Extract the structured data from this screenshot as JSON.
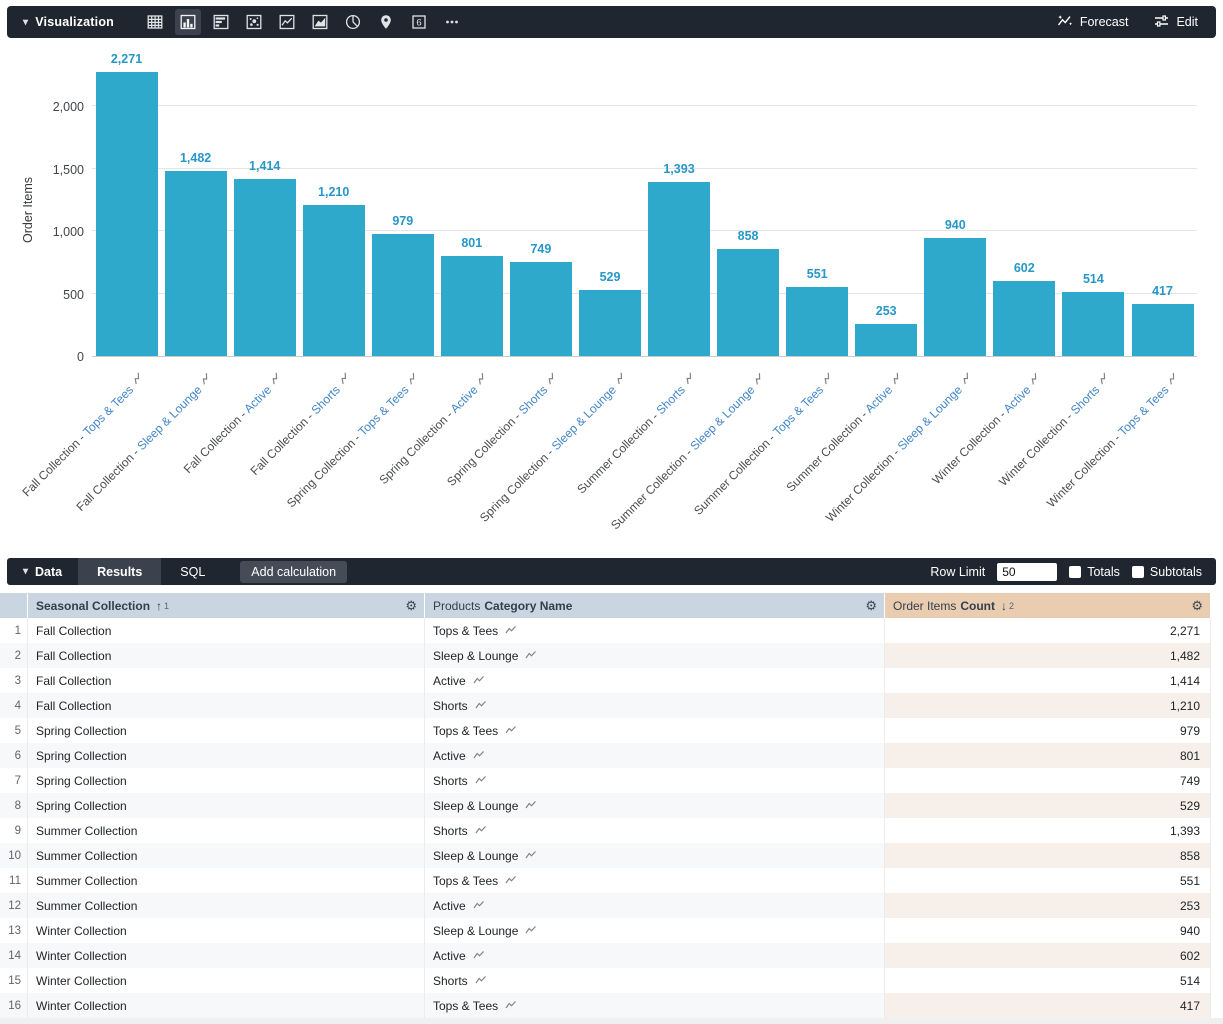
{
  "colors": {
    "toolbar_bg": "#20262F",
    "selected_item_bg": "#3B424E",
    "bar": "#2EA9CB",
    "value_label": "#2697C8",
    "category_link": "#4285C8",
    "dimension_header_bg": "#CAD5E2",
    "measure_header_bg": "#EACDB1",
    "measure_row_alt_bg": "#F7F0EA",
    "dimension_row_alt_bg": "#F7F8F9"
  },
  "viz_toolbar": {
    "title": "Visualization",
    "icons": [
      "table-chart",
      "column-chart",
      "bar-chart",
      "scatter-plot",
      "line-chart",
      "area-chart",
      "pie-chart",
      "map-marker",
      "single-value",
      "more-options"
    ],
    "selected_icon": "column-chart",
    "forecast_label": "Forecast",
    "edit_label": "Edit"
  },
  "chart_data": {
    "type": "bar",
    "title": "",
    "xlabel": "",
    "ylabel": "Order Items",
    "ylim": [
      0,
      2536
    ],
    "y_ticks": [
      0,
      500,
      1000,
      1500,
      2000
    ],
    "grid": true,
    "legend": false,
    "bar_color": "#2EA9CB",
    "categories": [
      "Fall Collection - Tops & Tees",
      "Fall Collection - Sleep & Lounge",
      "Fall Collection - Active",
      "Fall Collection - Shorts",
      "Spring Collection - Tops & Tees",
      "Spring Collection - Active",
      "Spring Collection - Shorts",
      "Spring Collection - Sleep & Lounge",
      "Summer Collection - Shorts",
      "Summer Collection - Sleep & Lounge",
      "Summer Collection - Tops & Tees",
      "Summer Collection - Active",
      "Winter Collection - Sleep & Lounge",
      "Winter Collection - Active",
      "Winter Collection - Shorts",
      "Winter Collection - Tops & Tees"
    ],
    "values": [
      2271,
      1482,
      1414,
      1210,
      979,
      801,
      749,
      529,
      1393,
      858,
      551,
      253,
      940,
      602,
      514,
      417
    ]
  },
  "data_panel": {
    "title": "Data",
    "tabs": [
      {
        "label": "Results"
      },
      {
        "label": "SQL"
      }
    ],
    "active_tab": "Results",
    "add_calculation_label": "Add calculation",
    "row_limit_label": "Row Limit",
    "row_limit_value": "50",
    "totals_label": "Totals",
    "subtotals_label": "Subtotals"
  },
  "table": {
    "columns": [
      {
        "view": "",
        "field": "Seasonal Collection",
        "sort": "asc",
        "sort_order": "1",
        "role": "dimension"
      },
      {
        "view": "Products",
        "field": "Category Name",
        "sort": "",
        "sort_order": "",
        "role": "dimension"
      },
      {
        "view": "Order Items",
        "field": "Count",
        "sort": "desc",
        "sort_order": "2",
        "role": "measure"
      }
    ],
    "rows": [
      {
        "num": "1",
        "collection": "Fall Collection",
        "category": "Tops & Tees",
        "count": "2,271"
      },
      {
        "num": "2",
        "collection": "Fall Collection",
        "category": "Sleep & Lounge",
        "count": "1,482"
      },
      {
        "num": "3",
        "collection": "Fall Collection",
        "category": "Active",
        "count": "1,414"
      },
      {
        "num": "4",
        "collection": "Fall Collection",
        "category": "Shorts",
        "count": "1,210"
      },
      {
        "num": "5",
        "collection": "Spring Collection",
        "category": "Tops & Tees",
        "count": "979"
      },
      {
        "num": "6",
        "collection": "Spring Collection",
        "category": "Active",
        "count": "801"
      },
      {
        "num": "7",
        "collection": "Spring Collection",
        "category": "Shorts",
        "count": "749"
      },
      {
        "num": "8",
        "collection": "Spring Collection",
        "category": "Sleep & Lounge",
        "count": "529"
      },
      {
        "num": "9",
        "collection": "Summer Collection",
        "category": "Shorts",
        "count": "1,393"
      },
      {
        "num": "10",
        "collection": "Summer Collection",
        "category": "Sleep & Lounge",
        "count": "858"
      },
      {
        "num": "11",
        "collection": "Summer Collection",
        "category": "Tops & Tees",
        "count": "551"
      },
      {
        "num": "12",
        "collection": "Summer Collection",
        "category": "Active",
        "count": "253"
      },
      {
        "num": "13",
        "collection": "Winter Collection",
        "category": "Sleep & Lounge",
        "count": "940"
      },
      {
        "num": "14",
        "collection": "Winter Collection",
        "category": "Active",
        "count": "602"
      },
      {
        "num": "15",
        "collection": "Winter Collection",
        "category": "Shorts",
        "count": "514"
      },
      {
        "num": "16",
        "collection": "Winter Collection",
        "category": "Tops & Tees",
        "count": "417"
      }
    ]
  }
}
